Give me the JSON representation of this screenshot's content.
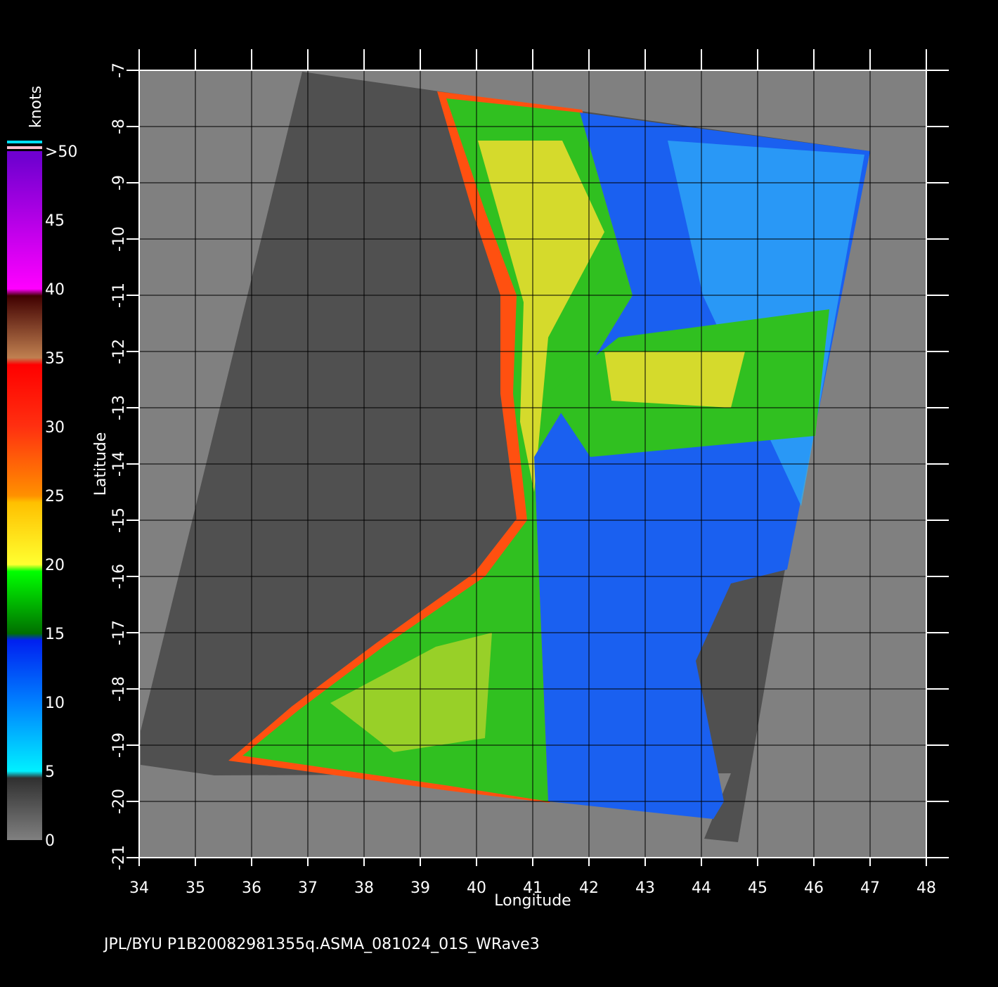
{
  "map": {
    "x_label": "Longitude",
    "y_label": "Latitude",
    "xticks": [
      34,
      35,
      36,
      37,
      38,
      39,
      40,
      41,
      42,
      43,
      44,
      45,
      46,
      47,
      48
    ],
    "yticks": [
      -7,
      -8,
      -9,
      -10,
      -11,
      -12,
      -13,
      -14,
      -15,
      -16,
      -17,
      -18,
      -19,
      -20,
      -21
    ],
    "colorbar": {
      "unit": "knots",
      "ticks": [
        {
          "value": 50,
          "label": ">50"
        },
        45,
        40,
        35,
        30,
        25,
        20,
        15,
        10,
        5,
        0
      ]
    },
    "footer": "JPL/BYU  P1B20082981355q.ASMA_081024_01S_WRave3"
  }
}
